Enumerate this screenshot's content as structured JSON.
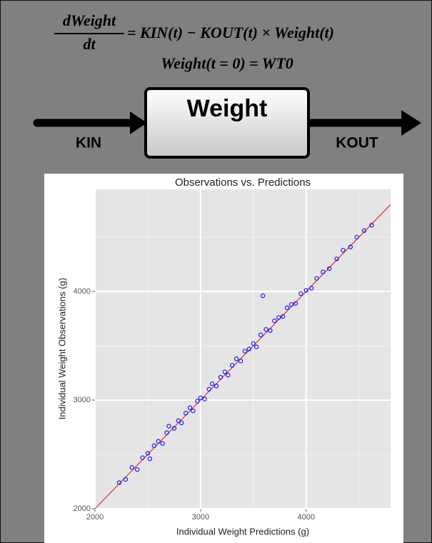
{
  "equation": {
    "numerator": "dWeight",
    "denominator": "dt",
    "right_side": "= KIN(t) − KOUT(t) × Weight(t)",
    "initial_condition": "Weight(t = 0) = WT0"
  },
  "diagram": {
    "compartment": "Weight",
    "input": "KIN",
    "output": "KOUT"
  },
  "chart_data": {
    "type": "scatter",
    "title": "Observations vs. Predictions",
    "x_label": "Individual Weight Predictions (g)",
    "y_label": "Individual Weight Observations (g)",
    "x": [
      2230,
      2290,
      2350,
      2400,
      2450,
      2500,
      2520,
      2560,
      2600,
      2640,
      2680,
      2700,
      2750,
      2790,
      2820,
      2860,
      2900,
      2930,
      2970,
      3000,
      3040,
      3080,
      3110,
      3150,
      3190,
      3230,
      3260,
      3300,
      3340,
      3380,
      3420,
      3460,
      3500,
      3530,
      3570,
      3590,
      3620,
      3660,
      3700,
      3740,
      3780,
      3820,
      3860,
      3900,
      3950,
      4000,
      4050,
      4100,
      4160,
      4220,
      4290,
      4350,
      4420,
      4480,
      4550,
      4620
    ],
    "values": [
      2240,
      2270,
      2380,
      2360,
      2470,
      2510,
      2460,
      2580,
      2620,
      2600,
      2700,
      2760,
      2740,
      2810,
      2790,
      2880,
      2930,
      2900,
      2990,
      3020,
      3010,
      3100,
      3150,
      3130,
      3210,
      3260,
      3230,
      3320,
      3380,
      3360,
      3450,
      3470,
      3520,
      3490,
      3600,
      3960,
      3650,
      3640,
      3730,
      3760,
      3770,
      3850,
      3880,
      3890,
      3980,
      4010,
      4030,
      4120,
      4180,
      4210,
      4300,
      4380,
      4410,
      4500,
      4560,
      4610
    ],
    "color": "#1a1aff",
    "line_color": "#e03030",
    "xlim": [
      2000,
      4800
    ],
    "ylim": [
      2000,
      4940
    ],
    "xticks": [
      2000,
      3000,
      4000
    ],
    "yticks": [
      2000,
      3000,
      4000
    ],
    "minor_xticks": [
      2500,
      3500,
      4500
    ],
    "minor_yticks": [
      2500,
      3500,
      4500
    ],
    "grid": true
  }
}
